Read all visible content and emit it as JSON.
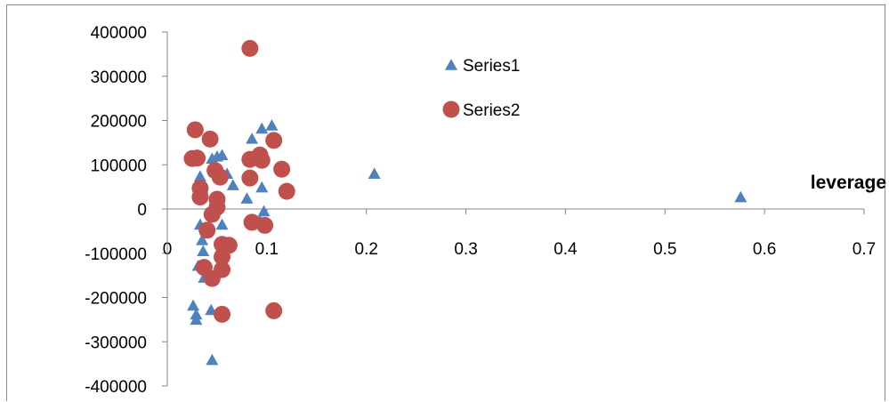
{
  "chart_data": {
    "type": "scatter",
    "xlabel": "leverage",
    "ylabel": "",
    "xlim": [
      0,
      0.7
    ],
    "ylim": [
      -400000,
      400000
    ],
    "x_ticks": [
      "0",
      "0.1",
      "0.2",
      "0.3",
      "0.4",
      "0.5",
      "0.6",
      "0.7"
    ],
    "y_ticks": [
      "400000",
      "300000",
      "200000",
      "100000",
      "0",
      "-100000",
      "-200000",
      "-300000",
      "-400000"
    ],
    "grid": false,
    "legend_position": "top-center",
    "series": [
      {
        "name": "Series1",
        "marker": "triangle",
        "color": "#4f81bd",
        "points": [
          [
            0.208,
            78000
          ],
          [
            0.576,
            25000
          ],
          [
            0.026,
            -220000
          ],
          [
            0.029,
            -240000
          ],
          [
            0.029,
            -252000
          ],
          [
            0.044,
            -230000
          ],
          [
            0.045,
            -343000
          ],
          [
            0.031,
            -130000
          ],
          [
            0.037,
            -157000
          ],
          [
            0.036,
            -97000
          ],
          [
            0.035,
            -72000
          ],
          [
            0.033,
            -37000
          ],
          [
            0.033,
            72000
          ],
          [
            0.035,
            45000
          ],
          [
            0.045,
            112000
          ],
          [
            0.05,
            117000
          ],
          [
            0.055,
            120000
          ],
          [
            0.048,
            82000
          ],
          [
            0.06,
            78000
          ],
          [
            0.066,
            52000
          ],
          [
            0.055,
            -37000
          ],
          [
            0.08,
            22000
          ],
          [
            0.085,
            157000
          ],
          [
            0.095,
            180000
          ],
          [
            0.105,
            187000
          ],
          [
            0.095,
            47000
          ],
          [
            0.097,
            -7000
          ],
          [
            0.093,
            -28000
          ]
        ]
      },
      {
        "name": "Series2",
        "marker": "circle",
        "color": "#c0504d",
        "points": [
          [
            0.083,
            363000
          ],
          [
            0.025,
            114000
          ],
          [
            0.03,
            115000
          ],
          [
            0.028,
            179000
          ],
          [
            0.043,
            158000
          ],
          [
            0.048,
            87000
          ],
          [
            0.053,
            72000
          ],
          [
            0.033,
            47000
          ],
          [
            0.033,
            27000
          ],
          [
            0.05,
            22000
          ],
          [
            0.05,
            4000
          ],
          [
            0.045,
            -12000
          ],
          [
            0.04,
            -48000
          ],
          [
            0.055,
            -80000
          ],
          [
            0.062,
            -82000
          ],
          [
            0.055,
            -108000
          ],
          [
            0.037,
            -132000
          ],
          [
            0.055,
            -137000
          ],
          [
            0.045,
            -157000
          ],
          [
            0.055,
            -238000
          ],
          [
            0.083,
            112000
          ],
          [
            0.095,
            110000
          ],
          [
            0.093,
            122000
          ],
          [
            0.107,
            155000
          ],
          [
            0.115,
            90000
          ],
          [
            0.083,
            70000
          ],
          [
            0.12,
            40000
          ],
          [
            0.085,
            -30000
          ],
          [
            0.098,
            -37000
          ],
          [
            0.107,
            -230000
          ]
        ]
      }
    ]
  }
}
